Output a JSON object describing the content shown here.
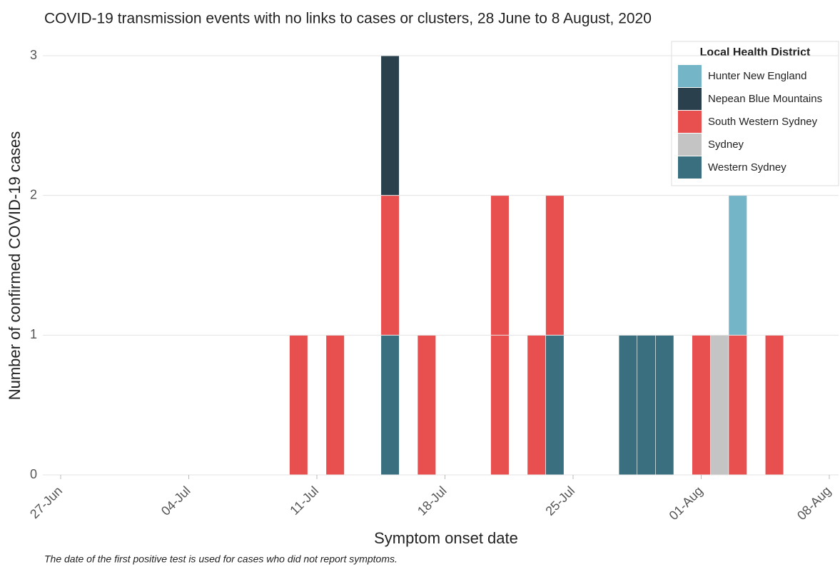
{
  "chart_data": {
    "type": "bar",
    "stacked": true,
    "title": "COVID-19 transmission events with no links to cases or clusters, 28 June to 8 August, 2020",
    "x_label": "Symptom onset date",
    "y_label": "Number of confirmed COVID-19 cases",
    "note": "The date of the first positive test is used for cases who did not report symptoms.",
    "legend_title": "Local Health District",
    "legend_position": "top-right",
    "grid": true,
    "categories": [
      "27-Jun",
      null,
      null,
      null,
      null,
      null,
      null,
      "04-Jul",
      null,
      null,
      null,
      null,
      null,
      null,
      "11-Jul",
      null,
      null,
      null,
      null,
      null,
      null,
      "18-Jul",
      null,
      null,
      null,
      null,
      null,
      null,
      "25-Jul",
      null,
      null,
      null,
      null,
      null,
      null,
      "01-Aug",
      null,
      null,
      null,
      null,
      null,
      null,
      "08-Aug"
    ],
    "series": [
      {
        "name": "Hunter New England",
        "color": "#74b5c8",
        "values": [
          0,
          0,
          0,
          0,
          0,
          0,
          0,
          0,
          0,
          0,
          0,
          0,
          0,
          0,
          0,
          0,
          0,
          0,
          0,
          0,
          0,
          0,
          0,
          0,
          0,
          0,
          0,
          0,
          0,
          0,
          0,
          0,
          0,
          0,
          0,
          0,
          0,
          1,
          0,
          0,
          0,
          0,
          0
        ]
      },
      {
        "name": "Nepean Blue Mountains",
        "color": "#2a404c",
        "values": [
          0,
          0,
          0,
          0,
          0,
          0,
          0,
          0,
          0,
          0,
          0,
          0,
          0,
          0,
          0,
          0,
          0,
          0,
          1,
          0,
          0,
          0,
          0,
          0,
          0,
          0,
          0,
          0,
          0,
          0,
          0,
          0,
          0,
          0,
          0,
          0,
          0,
          0,
          0,
          0,
          0,
          0,
          0
        ]
      },
      {
        "name": "South Western Sydney",
        "color": "#e85050",
        "values": [
          0,
          0,
          0,
          0,
          0,
          0,
          0,
          0,
          0,
          0,
          0,
          0,
          0,
          1,
          0,
          1,
          0,
          0,
          1,
          0,
          1,
          0,
          0,
          0,
          2,
          0,
          1,
          1,
          0,
          0,
          0,
          0,
          0,
          0,
          0,
          1,
          0,
          1,
          0,
          1,
          0,
          0,
          0
        ]
      },
      {
        "name": "Sydney",
        "color": "#c4c4c4",
        "values": [
          0,
          0,
          0,
          0,
          0,
          0,
          0,
          0,
          0,
          0,
          0,
          0,
          0,
          0,
          0,
          0,
          0,
          0,
          0,
          0,
          0,
          0,
          0,
          0,
          0,
          0,
          0,
          0,
          0,
          0,
          0,
          0,
          0,
          0,
          0,
          0,
          1,
          0,
          0,
          0,
          0,
          0,
          0
        ]
      },
      {
        "name": "Western Sydney",
        "color": "#3a6f80",
        "values": [
          0,
          0,
          0,
          0,
          0,
          0,
          0,
          0,
          0,
          0,
          0,
          0,
          0,
          0,
          0,
          0,
          0,
          0,
          1,
          0,
          0,
          0,
          0,
          0,
          0,
          0,
          0,
          1,
          0,
          0,
          0,
          1,
          1,
          1,
          0,
          0,
          0,
          0,
          0,
          0,
          0,
          0,
          0
        ]
      }
    ],
    "ylim": [
      0,
      3
    ],
    "yticks": [
      0,
      1,
      2,
      3
    ]
  }
}
